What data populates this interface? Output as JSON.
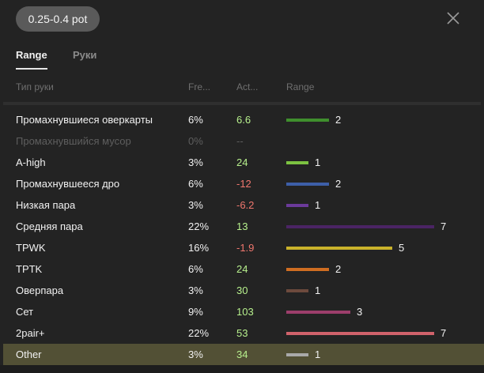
{
  "header": {
    "pill_label": "0.25-0.4 pot",
    "close_icon": "close-icon"
  },
  "tabs": [
    {
      "label": "Range",
      "active": true
    },
    {
      "label": "Руки",
      "active": false
    }
  ],
  "columns": {
    "hand_type": "Тип руки",
    "frequency": "Fre...",
    "action": "Act...",
    "range": "Range"
  },
  "rows": [
    {
      "name": "Промахнувшиеся оверкарты",
      "freq": "6%",
      "act": "6.6",
      "act_sign": "pos",
      "bar_color": "#3f8f2d",
      "bar_units": 2,
      "count": "2"
    },
    {
      "name": "Промахнувшийся мусор",
      "freq": "0%",
      "act": "--",
      "act_sign": "muted",
      "bar_color": "",
      "bar_units": 0,
      "count": "",
      "muted": true
    },
    {
      "name": "A-high",
      "freq": "3%",
      "act": "24",
      "act_sign": "pos",
      "bar_color": "#7cc241",
      "bar_units": 1,
      "count": "1"
    },
    {
      "name": "Промахнувшееся дро",
      "freq": "6%",
      "act": "-12",
      "act_sign": "neg",
      "bar_color": "#3d5fa8",
      "bar_units": 2,
      "count": "2"
    },
    {
      "name": "Низкая пара",
      "freq": "3%",
      "act": "-6.2",
      "act_sign": "neg",
      "bar_color": "#6b3a9a",
      "bar_units": 1,
      "count": "1"
    },
    {
      "name": "Средняя пара",
      "freq": "22%",
      "act": "13",
      "act_sign": "pos",
      "bar_color": "#4b2464",
      "bar_units": 7,
      "count": "7"
    },
    {
      "name": "TPWK",
      "freq": "16%",
      "act": "-1.9",
      "act_sign": "neg",
      "bar_color": "#c9b22b",
      "bar_units": 5,
      "count": "5"
    },
    {
      "name": "TPTK",
      "freq": "6%",
      "act": "24",
      "act_sign": "pos",
      "bar_color": "#cf6d21",
      "bar_units": 2,
      "count": "2"
    },
    {
      "name": "Оверпара",
      "freq": "3%",
      "act": "30",
      "act_sign": "pos",
      "bar_color": "#6d4a3d",
      "bar_units": 1,
      "count": "1"
    },
    {
      "name": "Сет",
      "freq": "9%",
      "act": "103",
      "act_sign": "pos",
      "bar_color": "#9c3e6b",
      "bar_units": 3,
      "count": "3"
    },
    {
      "name": "2pair+",
      "freq": "22%",
      "act": "53",
      "act_sign": "pos",
      "bar_color": "#d0626b",
      "bar_units": 7,
      "count": "7"
    },
    {
      "name": "Other",
      "freq": "3%",
      "act": "34",
      "act_sign": "pos",
      "bar_color": "#a9a9a9",
      "bar_units": 1,
      "count": "1",
      "highlight": true
    }
  ],
  "colors": {
    "positive": "#b7f08d",
    "negative": "#f0776e",
    "highlight_row": "#525035",
    "pill_bg": "#5a5a5a"
  }
}
